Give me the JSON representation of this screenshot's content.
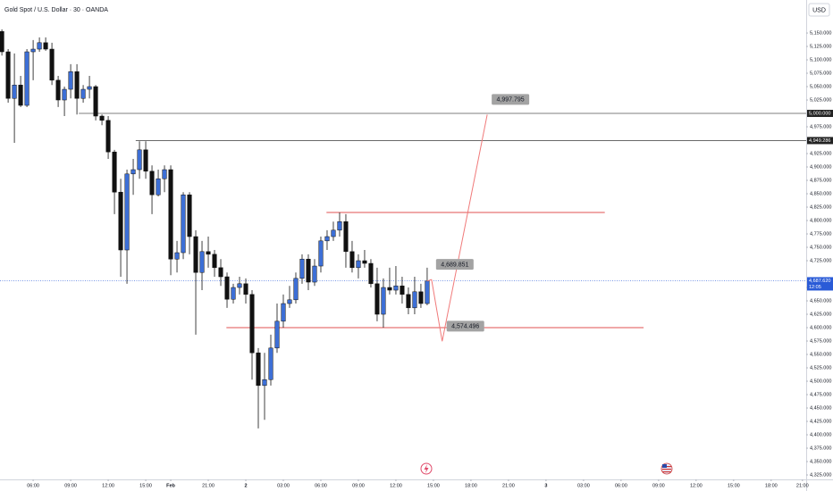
{
  "chart_data": {
    "type": "candlestick",
    "title": "Gold Spot / U.S. Dollar · 30 · OANDA",
    "currency": "USD",
    "up_color": "#3d6fd6",
    "down_color": "#111111",
    "candles": [
      [
        5153,
        5157,
        5108,
        5115
      ],
      [
        5115,
        5120,
        5020,
        5028
      ],
      [
        5028,
        5112,
        4945,
        5053
      ],
      [
        5053,
        5070,
        5012,
        5015
      ],
      [
        5015,
        5120,
        5012,
        5115
      ],
      [
        5115,
        5137,
        5062,
        5120
      ],
      [
        5120,
        5142,
        5115,
        5132
      ],
      [
        5132,
        5142,
        5117,
        5120
      ],
      [
        5120,
        5132,
        5053,
        5062
      ],
      [
        5062,
        5070,
        5012,
        5025
      ],
      [
        5025,
        5050,
        4995,
        5045
      ],
      [
        5045,
        5092,
        5028,
        5078
      ],
      [
        5078,
        5092,
        4998,
        5028
      ],
      [
        5028,
        5053,
        5020,
        5045
      ],
      [
        5045,
        5070,
        5028,
        5050
      ],
      [
        5050,
        5053,
        4987,
        4995
      ],
      [
        4995,
        4998,
        4978,
        4987
      ],
      [
        4987,
        4995,
        4915,
        4928
      ],
      [
        4928,
        4932,
        4812,
        4853
      ],
      [
        4853,
        4878,
        4695,
        4745
      ],
      [
        4745,
        4895,
        4682,
        4887
      ],
      [
        4887,
        4915,
        4848,
        4895
      ],
      [
        4895,
        4948,
        4878,
        4932
      ],
      [
        4932,
        4948,
        4878,
        4892
      ],
      [
        4892,
        4903,
        4812,
        4848
      ],
      [
        4848,
        4895,
        4845,
        4878
      ],
      [
        4878,
        4903,
        4853,
        4895
      ],
      [
        4895,
        4903,
        4698,
        4728
      ],
      [
        4728,
        4762,
        4703,
        4740
      ],
      [
        4740,
        4853,
        4728,
        4848
      ],
      [
        4848,
        4853,
        4737,
        4770
      ],
      [
        4770,
        4782,
        4587,
        4703
      ],
      [
        4703,
        4762,
        4670,
        4742
      ],
      [
        4742,
        4770,
        4712,
        4737
      ],
      [
        4737,
        4745,
        4695,
        4712
      ],
      [
        4712,
        4728,
        4678,
        4695
      ],
      [
        4695,
        4703,
        4637,
        4653
      ],
      [
        4653,
        4682,
        4645,
        4675
      ],
      [
        4675,
        4695,
        4662,
        4682
      ],
      [
        4682,
        4692,
        4645,
        4662
      ],
      [
        4662,
        4670,
        4503,
        4553
      ],
      [
        4553,
        4562,
        4412,
        4492
      ],
      [
        4492,
        4553,
        4428,
        4503
      ],
      [
        4503,
        4587,
        4492,
        4562
      ],
      [
        4562,
        4645,
        4553,
        4612
      ],
      [
        4612,
        4662,
        4600,
        4645
      ],
      [
        4645,
        4678,
        4637,
        4652
      ],
      [
        4652,
        4703,
        4645,
        4692
      ],
      [
        4692,
        4737,
        4682,
        4728
      ],
      [
        4728,
        4737,
        4670,
        4685
      ],
      [
        4685,
        4728,
        4678,
        4715
      ],
      [
        4715,
        4770,
        4703,
        4762
      ],
      [
        4762,
        4782,
        4745,
        4770
      ],
      [
        4770,
        4798,
        4762,
        4782
      ],
      [
        4782,
        4815,
        4770,
        4798
      ],
      [
        4798,
        4812,
        4712,
        4742
      ],
      [
        4742,
        4762,
        4703,
        4712
      ],
      [
        4712,
        4737,
        4692,
        4725
      ],
      [
        4725,
        4745,
        4712,
        4720
      ],
      [
        4720,
        4728,
        4675,
        4682
      ],
      [
        4682,
        4712,
        4612,
        4625
      ],
      [
        4625,
        4692,
        4600,
        4675
      ],
      [
        4675,
        4712,
        4662,
        4670
      ],
      [
        4670,
        4715,
        4662,
        4678
      ],
      [
        4678,
        4695,
        4645,
        4662
      ],
      [
        4662,
        4675,
        4625,
        4637
      ],
      [
        4637,
        4695,
        4625,
        4667
      ],
      [
        4667,
        4682,
        4637,
        4645
      ],
      [
        4645,
        4712,
        4642,
        4687
      ]
    ],
    "xlim": [
      -0.3,
      128.6
    ],
    "ylim": [
      4316.7,
      5211.7
    ],
    "xticks": [
      {
        "value": 5,
        "label": "06:00"
      },
      {
        "value": 11,
        "label": "09:00"
      },
      {
        "value": 17,
        "label": "12:00"
      },
      {
        "value": 23,
        "label": "15:00"
      },
      {
        "value": 27,
        "label": "Feb"
      },
      {
        "value": 33,
        "label": "21:00"
      },
      2.0,
      {
        "value": 45,
        "label": "03:00"
      },
      {
        "value": 51,
        "label": "06:00"
      },
      {
        "value": 57,
        "label": "09:00"
      },
      {
        "value": 63,
        "label": "12:00"
      },
      {
        "value": 69,
        "label": "15:00"
      },
      {
        "value": 75,
        "label": "18:00"
      },
      {
        "value": 81,
        "label": "21:00"
      },
      3.0,
      {
        "value": 93,
        "label": "03:00"
      },
      {
        "value": 99,
        "label": "06:00"
      },
      {
        "value": 105,
        "label": "09:00"
      },
      {
        "value": 111,
        "label": "12:00"
      },
      {
        "value": 117,
        "label": "15:00"
      },
      {
        "value": 123,
        "label": "18:00"
      },
      {
        "value": 128,
        "label": "21:00"
      }
    ],
    "day_tick_positions": [
      39,
      87
    ],
    "yticks": [
      {
        "value": 4325,
        "label": "4,325.000"
      },
      {
        "value": 4350,
        "label": "4,350.000"
      },
      {
        "value": 4375,
        "label": "4,375.000"
      },
      {
        "value": 4400,
        "label": "4,400.000"
      },
      {
        "value": 4425,
        "label": "4,425.000"
      },
      {
        "value": 4450,
        "label": "4,450.000"
      },
      {
        "value": 4475,
        "label": "4,475.000"
      },
      {
        "value": 4500,
        "label": "4,500.000"
      },
      {
        "value": 4525,
        "label": "4,525.000"
      },
      {
        "value": 4550,
        "label": "4,550.000"
      },
      {
        "value": 4575,
        "label": "4,575.000"
      },
      {
        "value": 4600,
        "label": "4,600.000"
      },
      {
        "value": 4625,
        "label": "4,625.000"
      },
      {
        "value": 4650,
        "label": "4,650.000"
      },
      {
        "value": 4675,
        "label": "4,675.000"
      },
      {
        "value": 4725,
        "label": "4,725.000"
      },
      {
        "value": 4750,
        "label": "4,750.000"
      },
      {
        "value": 4775,
        "label": "4,775.000"
      },
      {
        "value": 4800,
        "label": "4,800.000"
      },
      {
        "value": 4825,
        "label": "4,825.000"
      },
      {
        "value": 4850,
        "label": "4,850.000"
      },
      {
        "value": 4875,
        "label": "4,875.000"
      },
      {
        "value": 4900,
        "label": "4,900.000"
      },
      {
        "value": 4925,
        "label": "4,925.000"
      },
      {
        "value": 4975,
        "label": "4,975.000"
      },
      {
        "value": 5025,
        "label": "5,025.000"
      },
      {
        "value": 5050,
        "label": "5,050.000"
      },
      {
        "value": 5075,
        "label": "5,075.000"
      },
      {
        "value": 5100,
        "label": "5,100.000"
      },
      {
        "value": 5125,
        "label": "5,125.000"
      },
      {
        "value": 5150,
        "label": "5,150.000"
      }
    ],
    "price_lines": [
      {
        "value": 5000,
        "label": "5,000.000",
        "x_start": 12.3,
        "color": "#555555"
      },
      {
        "value": 4949.286,
        "label": "4,949.286",
        "x_start": 21.4,
        "color": "#555555"
      }
    ],
    "zone_lines": [
      {
        "value": 4815,
        "x_start": 51.9,
        "x_end": 96.4,
        "color": "#e05252"
      },
      {
        "value": 4600,
        "x_start": 35.9,
        "x_end": 102.6,
        "color": "#e05252"
      }
    ],
    "projection": {
      "color": "#f07a7a",
      "x": [
        68.7,
        70.4,
        77.6
      ],
      "values": [
        4689.851,
        4574.496,
        4997.795
      ],
      "value_labels": [
        "4,689.851",
        "4,574.496",
        "4,997.795"
      ]
    },
    "last_price": {
      "value": 4687.62,
      "label": "4,687.620",
      "countdown": "12:05",
      "color": "#2a5bd7"
    }
  }
}
